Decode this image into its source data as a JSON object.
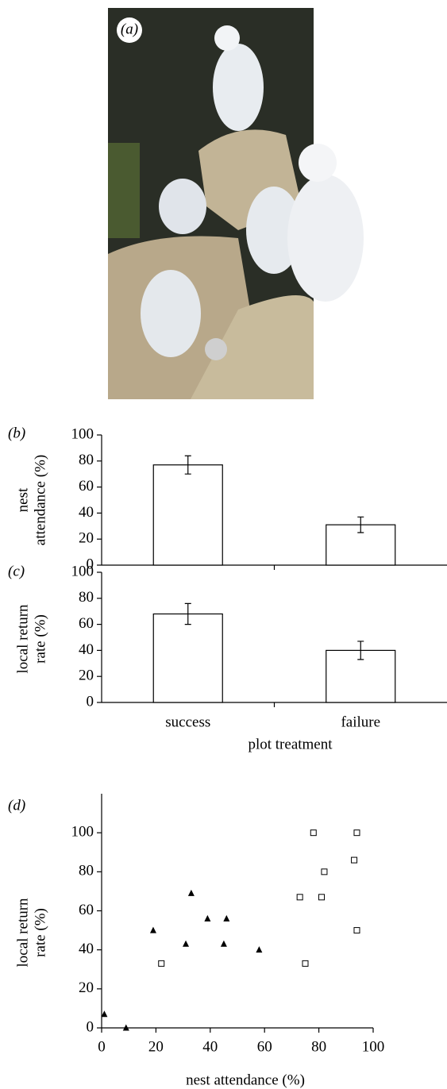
{
  "photo": {
    "label": "(a)"
  },
  "chart_data": [
    {
      "type": "bar",
      "label": "(b)",
      "ylabel": [
        "nest",
        "attendance (%)"
      ],
      "categories": [
        null,
        null
      ],
      "values": [
        77,
        31
      ],
      "errors": [
        7,
        6
      ],
      "color": "#ffffff",
      "ylim": [
        0,
        100
      ],
      "yticks": [
        0,
        20,
        40,
        60,
        80,
        100
      ]
    },
    {
      "type": "bar",
      "label": "(c)",
      "ylabel": [
        "local return",
        "rate (%)"
      ],
      "xlabel": "plot treatment",
      "categories": [
        "success",
        "failure"
      ],
      "values": [
        68,
        40
      ],
      "errors": [
        8,
        7
      ],
      "color": "#ffffff",
      "ylim": [
        0,
        100
      ],
      "yticks": [
        0,
        20,
        40,
        60,
        80,
        100
      ]
    },
    {
      "type": "scatter",
      "label": "(d)",
      "ylabel": [
        "local return",
        "rate (%)"
      ],
      "xlabel": "nest attendance (%)",
      "series": [
        {
          "marker": "square",
          "color": "#ffffff",
          "x": [
            22,
            75,
            73,
            78,
            81,
            82,
            93,
            94,
            94
          ],
          "values": [
            33,
            33,
            67,
            100,
            67,
            80,
            86,
            100,
            50
          ]
        },
        {
          "marker": "triangle",
          "color": "#000000",
          "x": [
            1,
            9,
            19,
            31,
            33,
            39,
            45,
            46,
            58
          ],
          "values": [
            7,
            0,
            50,
            43,
            69,
            56,
            43,
            56,
            40
          ]
        }
      ],
      "xlim": [
        0,
        100
      ],
      "xticks": [
        0,
        20,
        40,
        60,
        80,
        100
      ],
      "ylim": [
        0,
        120
      ],
      "yticks": [
        0,
        20,
        40,
        60,
        80,
        100
      ]
    }
  ]
}
